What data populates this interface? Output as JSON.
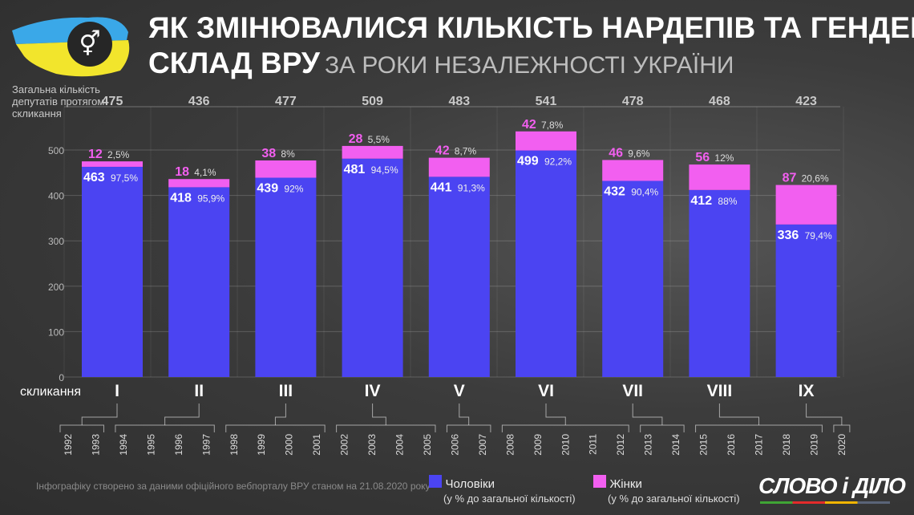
{
  "header": {
    "title_line1": "ЯК ЗМІНЮВАЛИСЯ КІЛЬКІСТЬ НАРДЕПІВ ТА ГЕНДЕРНИЙ",
    "title_line2": "СКЛАД ВРУ",
    "title_sub": "ЗА РОКИ НЕЗАЛЕЖНОСТІ УКРАЇНИ",
    "icon": "gender-symbols-icon"
  },
  "footer": {
    "note": "Інфографіку створено за даними офіційного вебпорталу ВРУ станом на 21.08.2020 року",
    "logo": "СЛОВО і ДІЛО"
  },
  "chart_data": {
    "type": "bar",
    "stacked": true,
    "ylabel": "Загальна кількість депутатів протягом скликання",
    "xlabel": "скликання",
    "ylim": [
      0,
      500
    ],
    "yticks": [
      0,
      100,
      200,
      300,
      400,
      500
    ],
    "grid": true,
    "categories": [
      "I",
      "II",
      "III",
      "IV",
      "V",
      "VI",
      "VII",
      "VIII",
      "IX"
    ],
    "totals": [
      475,
      436,
      477,
      509,
      483,
      541,
      478,
      468,
      423
    ],
    "series": [
      {
        "name": "Чоловіки",
        "note": "(у % до загальної кількості)",
        "color": "#4b44f2",
        "values": [
          463,
          418,
          439,
          481,
          441,
          499,
          432,
          412,
          336
        ],
        "pct": [
          "97,5%",
          "95,9%",
          "92%",
          "94,5%",
          "91,3%",
          "92,2%",
          "90,4%",
          "88%",
          "79,4%"
        ]
      },
      {
        "name": "Жінки",
        "note": "(у % до загальної кількості)",
        "color": "#f25ff0",
        "values": [
          12,
          18,
          38,
          28,
          42,
          42,
          46,
          56,
          87
        ],
        "pct": [
          "2,5%",
          "4,1%",
          "8%",
          "5,5%",
          "8,7%",
          "7,8%",
          "9,6%",
          "12%",
          "20,6%"
        ]
      }
    ],
    "years": [
      "1992",
      "1993",
      "1994",
      "1995",
      "1996",
      "1997",
      "1998",
      "1999",
      "2000",
      "2001",
      "2002",
      "2003",
      "2004",
      "2005",
      "2006",
      "2007",
      "2008",
      "2009",
      "2010",
      "2011",
      "2012",
      "2013",
      "2014",
      "2015",
      "2016",
      "2017",
      "2018",
      "2019",
      "2020"
    ],
    "convocation_years": [
      [
        "1992",
        "1993"
      ],
      [
        "1994",
        "1997"
      ],
      [
        "1998",
        "2001"
      ],
      [
        "2002",
        "2005"
      ],
      [
        "2006",
        "2007"
      ],
      [
        "2008",
        "2012"
      ],
      [
        "2013",
        "2014"
      ],
      [
        "2015",
        "2019"
      ],
      [
        "2020",
        "2020"
      ]
    ],
    "legend": "bottom"
  }
}
